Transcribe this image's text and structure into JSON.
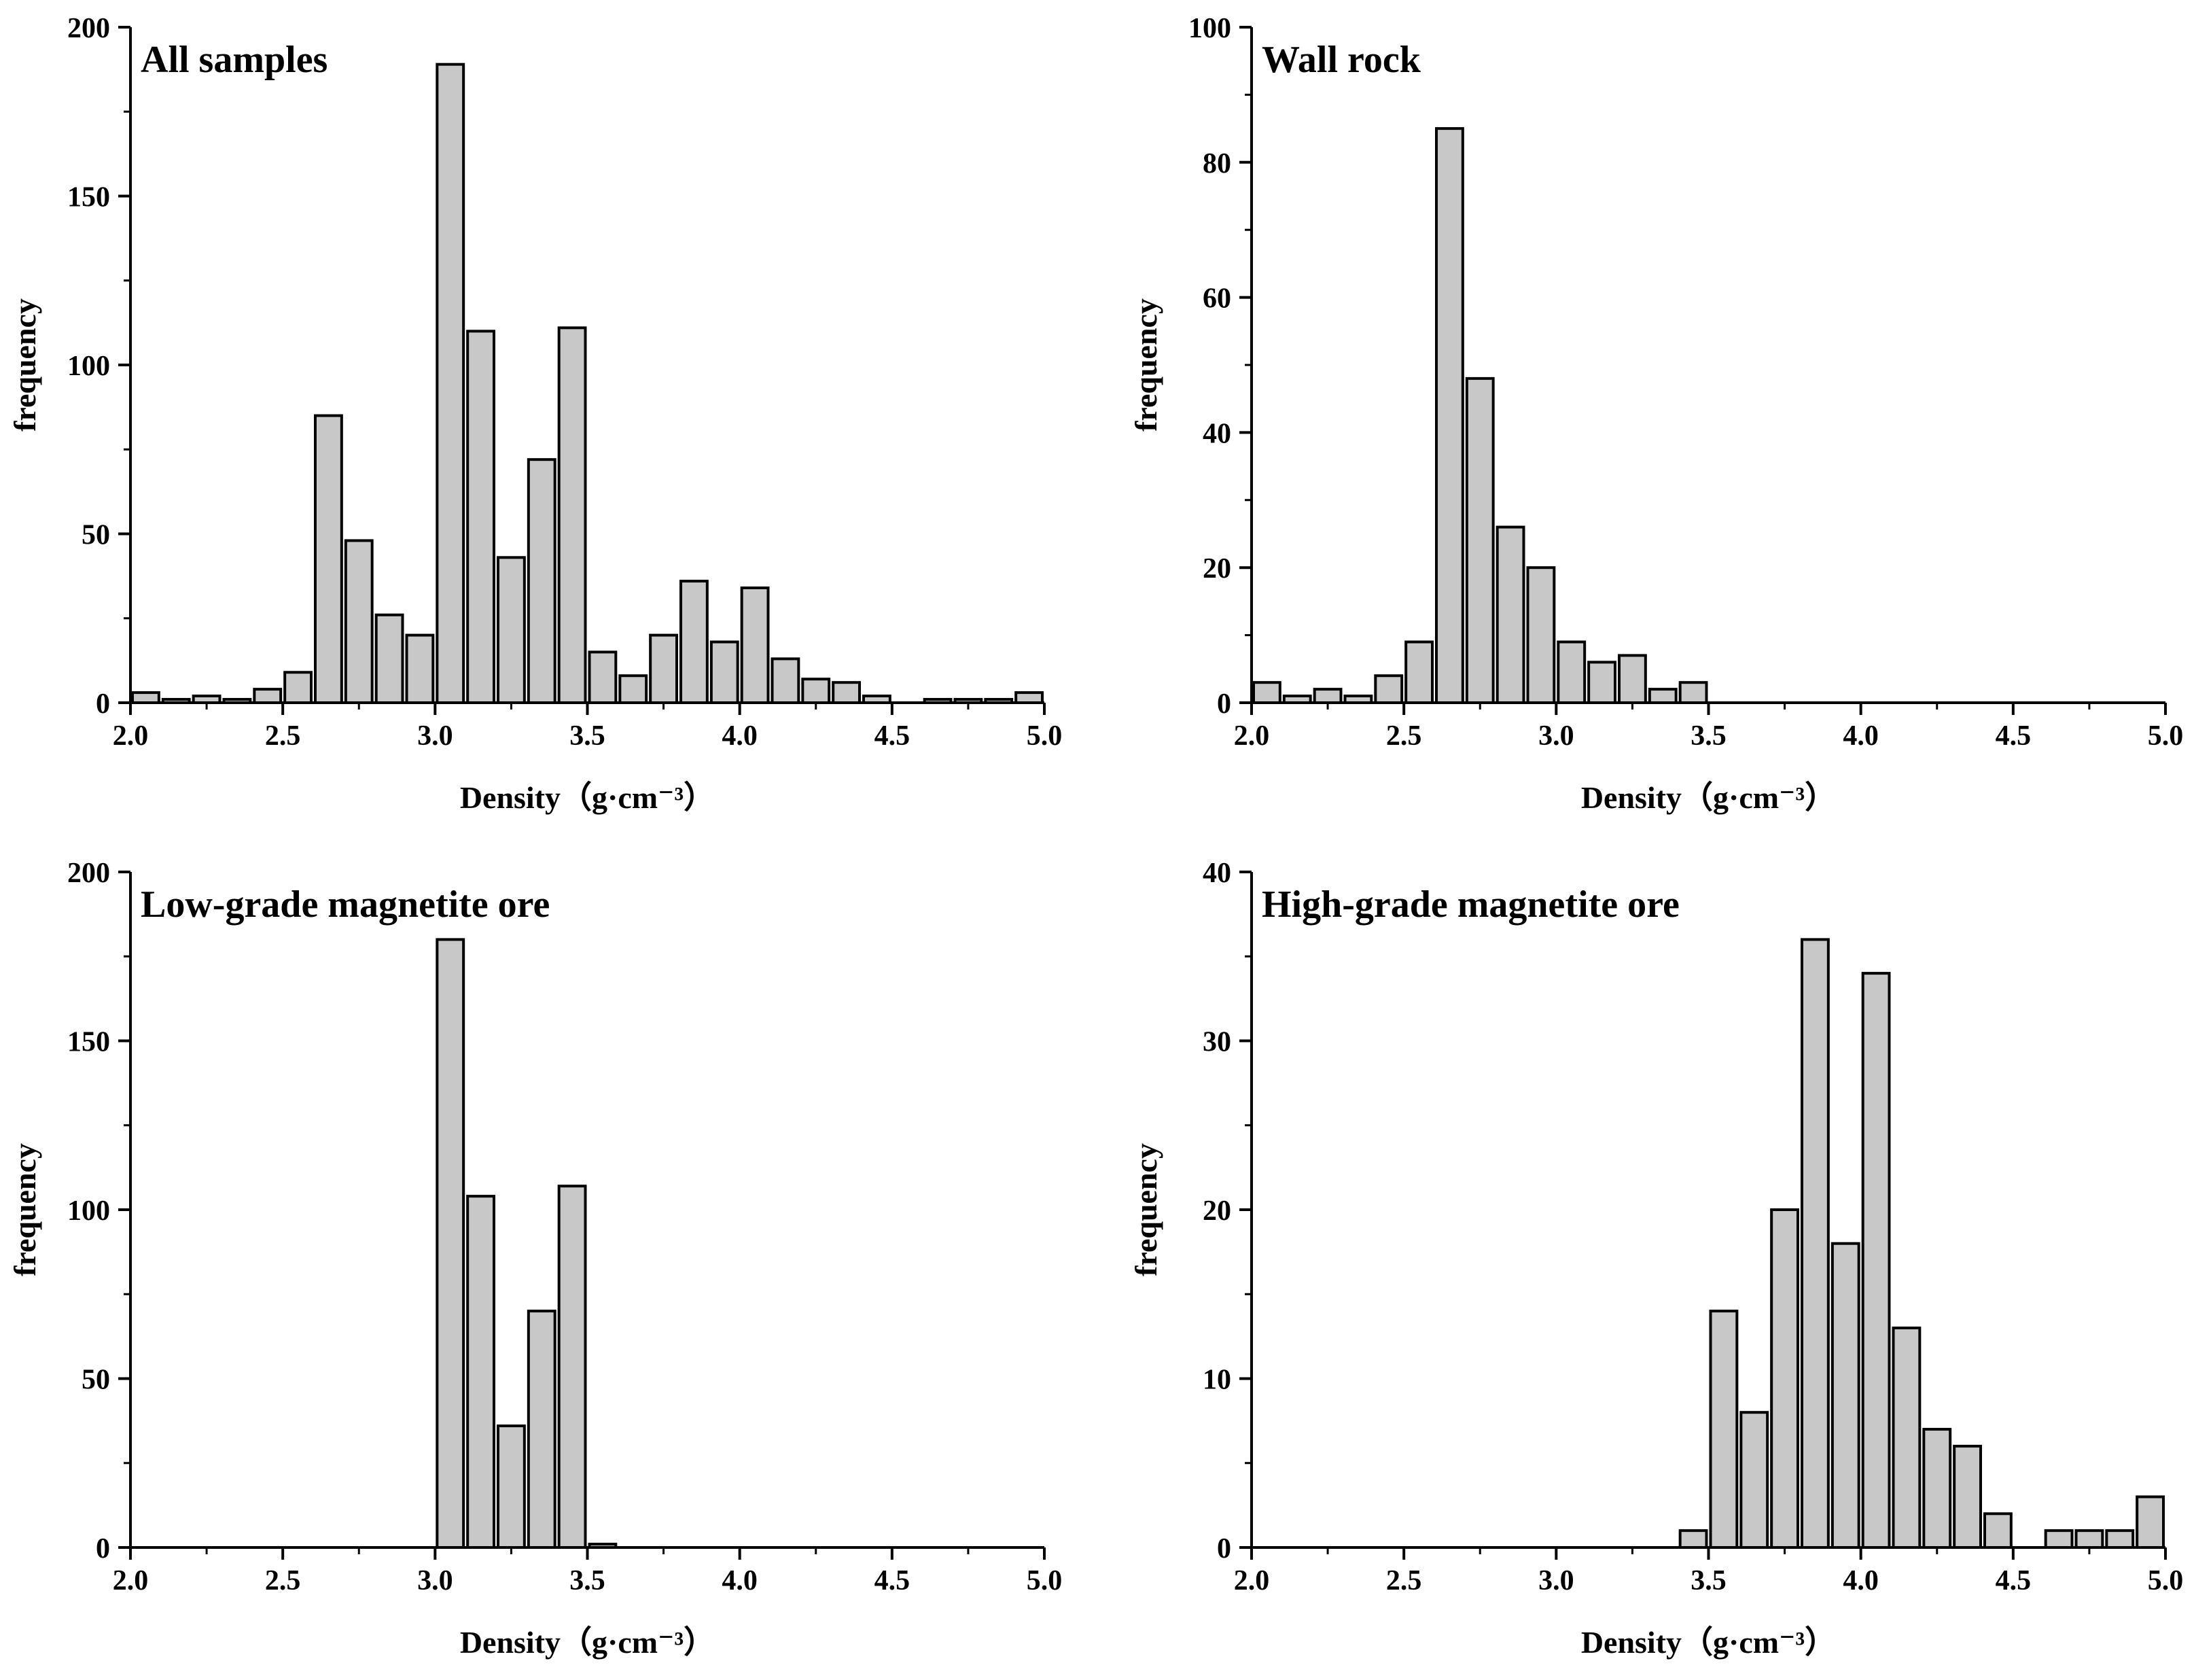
{
  "chart_data": [
    {
      "type": "bar",
      "title": "All samples",
      "xlabel": "Density（g·cm⁻³）",
      "ylabel": "frequency",
      "xlim": [
        2.0,
        5.0
      ],
      "ylim": [
        0,
        200
      ],
      "xticks": [
        2.0,
        2.5,
        3.0,
        3.5,
        4.0,
        4.5,
        5.0
      ],
      "yticks": [
        0,
        50,
        100,
        150,
        200
      ],
      "bin_width": 0.1,
      "bin_centers": [
        2.05,
        2.15,
        2.25,
        2.35,
        2.45,
        2.55,
        2.65,
        2.75,
        2.85,
        2.95,
        3.05,
        3.15,
        3.25,
        3.35,
        3.45,
        3.55,
        3.65,
        3.75,
        3.85,
        3.95,
        4.05,
        4.15,
        4.25,
        4.35,
        4.45,
        4.55,
        4.65,
        4.75,
        4.85,
        4.95
      ],
      "values": [
        3,
        1,
        2,
        1,
        4,
        9,
        85,
        48,
        26,
        20,
        189,
        110,
        43,
        72,
        111,
        15,
        8,
        20,
        36,
        18,
        34,
        13,
        7,
        6,
        2,
        0,
        1,
        1,
        1,
        3
      ],
      "grid": false,
      "bar_color": "#c8c8c8"
    },
    {
      "type": "bar",
      "title": "Wall rock",
      "xlabel": "Density（g·cm⁻³）",
      "ylabel": "frequency",
      "xlim": [
        2.0,
        5.0
      ],
      "ylim": [
        0,
        100
      ],
      "xticks": [
        2.0,
        2.5,
        3.0,
        3.5,
        4.0,
        4.5,
        5.0
      ],
      "yticks": [
        0,
        20,
        40,
        60,
        80,
        100
      ],
      "bin_width": 0.1,
      "bin_centers": [
        2.05,
        2.15,
        2.25,
        2.35,
        2.45,
        2.55,
        2.65,
        2.75,
        2.85,
        2.95,
        3.05,
        3.15,
        3.25,
        3.35,
        3.45
      ],
      "values": [
        3,
        1,
        2,
        1,
        4,
        9,
        85,
        48,
        26,
        20,
        9,
        6,
        7,
        2,
        3
      ],
      "grid": false,
      "bar_color": "#c8c8c8"
    },
    {
      "type": "bar",
      "title": "Low-grade magnetite ore",
      "xlabel": "Density（g·cm⁻³）",
      "ylabel": "frequency",
      "xlim": [
        2.0,
        5.0
      ],
      "ylim": [
        0,
        200
      ],
      "xticks": [
        2.0,
        2.5,
        3.0,
        3.5,
        4.0,
        4.5,
        5.0
      ],
      "yticks": [
        0,
        50,
        100,
        150,
        200
      ],
      "bin_width": 0.1,
      "bin_centers": [
        3.05,
        3.15,
        3.25,
        3.35,
        3.45,
        3.55
      ],
      "values": [
        180,
        104,
        36,
        70,
        107,
        1
      ],
      "grid": false,
      "bar_color": "#c8c8c8"
    },
    {
      "type": "bar",
      "title": "High-grade magnetite ore",
      "xlabel": "Density（g·cm⁻³）",
      "ylabel": "frequency",
      "xlim": [
        2.0,
        5.0
      ],
      "ylim": [
        0,
        40
      ],
      "xticks": [
        2.0,
        2.5,
        3.0,
        3.5,
        4.0,
        4.5,
        5.0
      ],
      "yticks": [
        0,
        10,
        20,
        30,
        40
      ],
      "bin_width": 0.1,
      "bin_centers": [
        3.45,
        3.55,
        3.65,
        3.75,
        3.85,
        3.95,
        4.05,
        4.15,
        4.25,
        4.35,
        4.45,
        4.55,
        4.65,
        4.75,
        4.85,
        4.95
      ],
      "values": [
        1,
        14,
        8,
        20,
        36,
        18,
        34,
        13,
        7,
        6,
        2,
        0,
        1,
        1,
        1,
        3
      ],
      "grid": false,
      "bar_color": "#c8c8c8"
    }
  ]
}
